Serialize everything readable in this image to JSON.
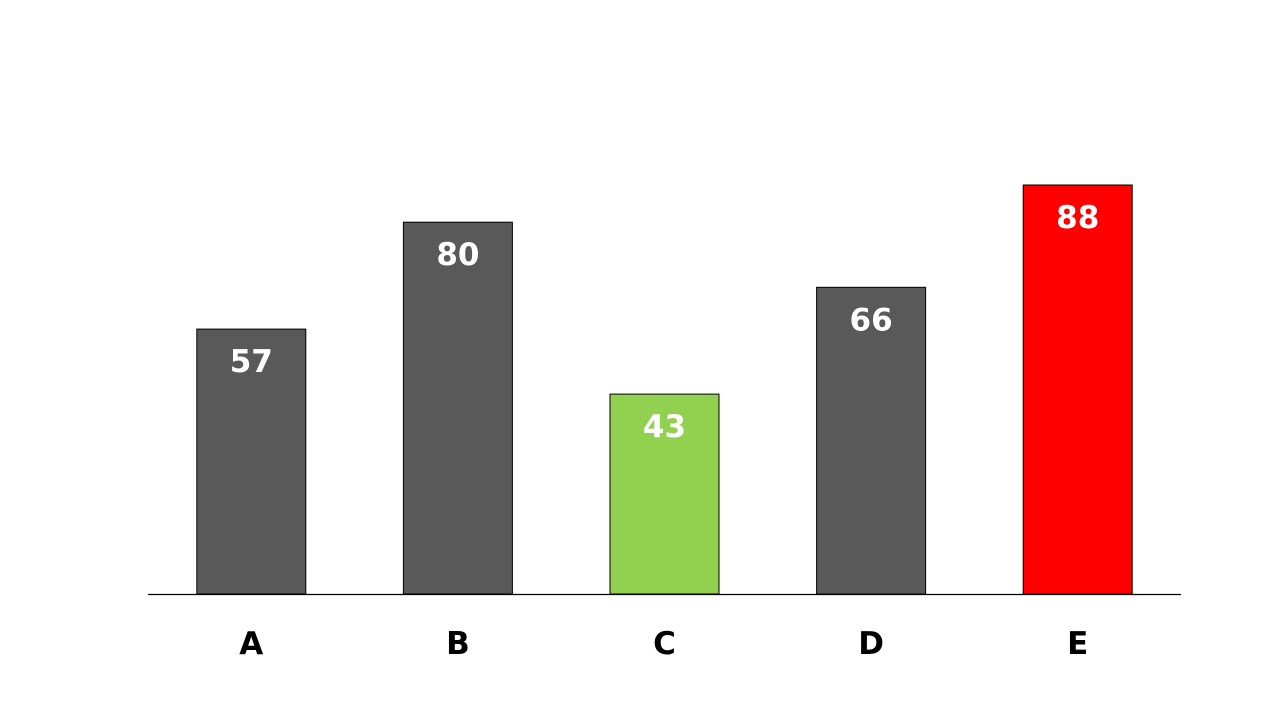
{
  "chart_data": {
    "type": "bar",
    "title": "",
    "xlabel": "",
    "ylabel": "",
    "categories": [
      "A",
      "B",
      "C",
      "D",
      "E"
    ],
    "values": [
      57,
      80,
      43,
      66,
      88
    ],
    "ylim": [
      0,
      100
    ],
    "grid": false,
    "bar_colors": [
      "#595959",
      "#595959",
      "#92d050",
      "#595959",
      "#ff0000"
    ],
    "bar_outline_color": "#000000",
    "data_label_color": "#ffffff",
    "axis_color": "#000000",
    "data_labels": [
      "57",
      "80",
      "43",
      "66",
      "88"
    ]
  }
}
